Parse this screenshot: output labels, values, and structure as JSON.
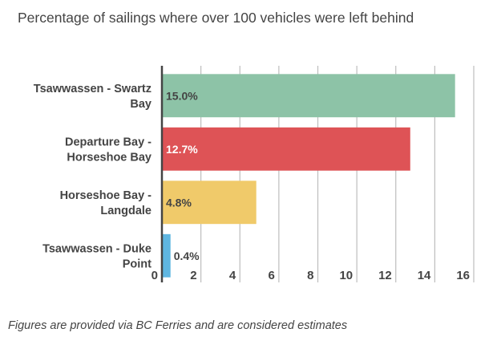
{
  "chart_data": {
    "type": "bar",
    "orientation": "horizontal",
    "title": "Percentage of sailings where over 100 vehicles were left behind",
    "footnote": "Figures are provided via BC Ferries and are considered estimates",
    "categories": [
      [
        "Tsawwassen - Swartz",
        "Bay"
      ],
      [
        "Departure Bay -",
        "Horseshoe Bay"
      ],
      [
        "Horseshoe Bay -",
        "Langdale"
      ],
      [
        "Tsawwassen - Duke",
        "Point"
      ]
    ],
    "values": [
      15.0,
      12.7,
      4.8,
      0.4
    ],
    "data_labels": [
      "15.0%",
      "12.7%",
      "4.8%",
      "0.4%"
    ],
    "colors": [
      "#8dc3a7",
      "#de5356",
      "#f0ca6a",
      "#5fb6e1"
    ],
    "data_label_colors": [
      "#444444",
      "#ffffff",
      "#444444",
      "#444444"
    ],
    "data_label_inside": [
      true,
      true,
      true,
      false
    ],
    "xlabel": "",
    "ylabel": "",
    "xlim": [
      0,
      16
    ],
    "xticks": [
      0,
      2,
      4,
      6,
      8,
      10,
      12,
      14,
      16
    ],
    "grid": true,
    "legend": "none"
  }
}
